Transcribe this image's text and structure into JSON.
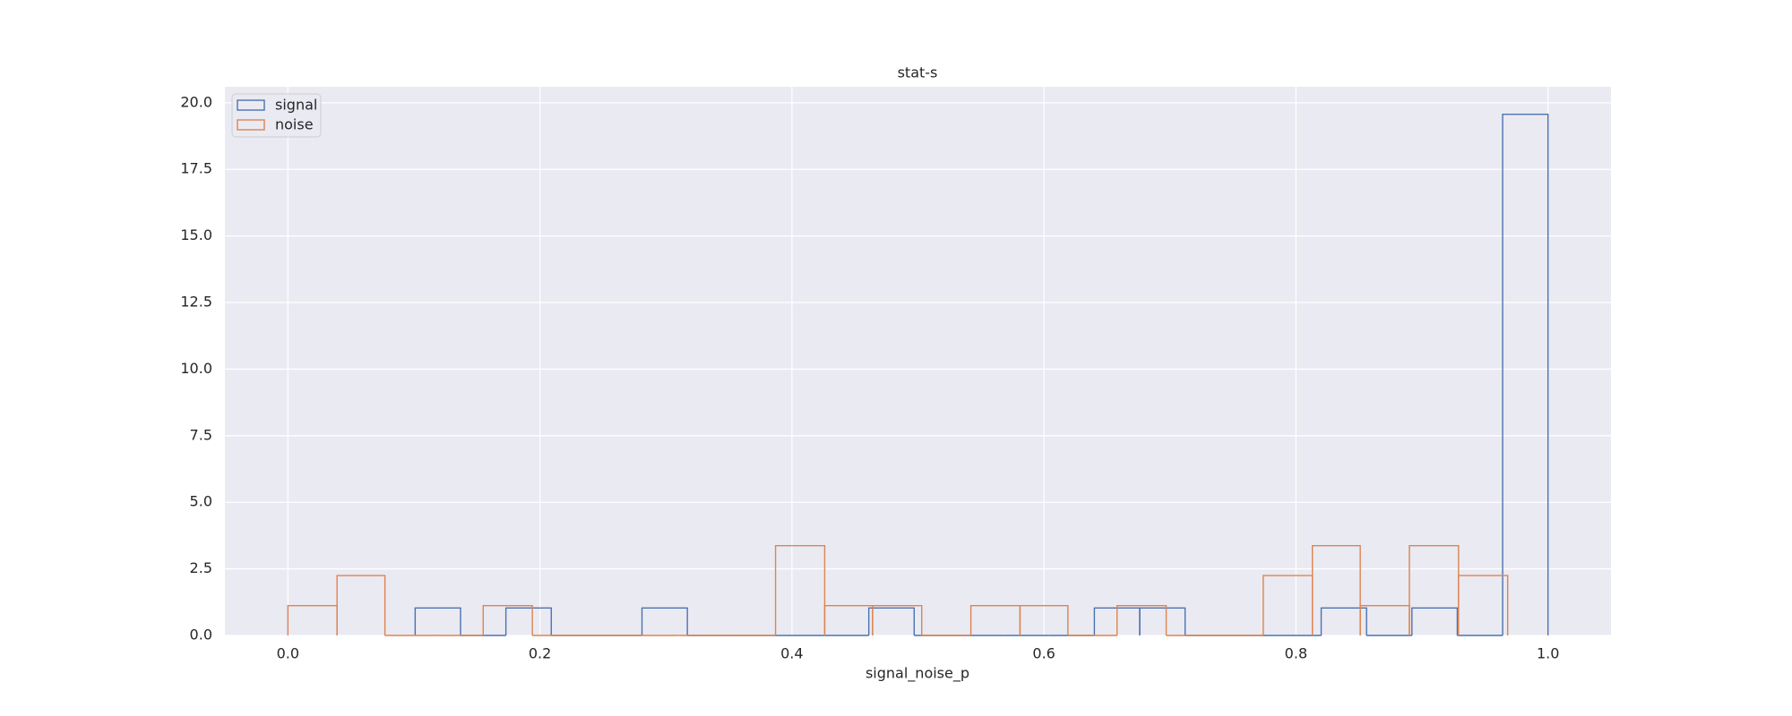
{
  "chart_data": {
    "type": "histogram",
    "title": "stat-s",
    "x_label": "signal_noise_p",
    "series": [
      {
        "name": "signal",
        "color": "#4c72b0",
        "bins": [
          0.101,
          0.137,
          0.173,
          0.209,
          0.245,
          0.281,
          0.317,
          0.353,
          0.389,
          0.425,
          0.461,
          0.497,
          0.533,
          0.568,
          0.604,
          0.64,
          0.676,
          0.712,
          0.748,
          0.784,
          0.82,
          0.856,
          0.892,
          0.928,
          0.964,
          1.0
        ],
        "values": [
          1.03,
          0,
          1.03,
          0,
          0,
          1.03,
          0,
          0,
          0,
          0,
          1.03,
          0,
          0,
          0,
          0,
          1.03,
          1.03,
          0,
          0,
          0,
          1.03,
          0,
          1.03,
          0,
          19.57
        ]
      },
      {
        "name": "noise",
        "color": "#dd8452",
        "bins": [
          0,
          0.039,
          0.077,
          0.116,
          0.155,
          0.194,
          0.232,
          0.271,
          0.31,
          0.348,
          0.387,
          0.426,
          0.464,
          0.503,
          0.542,
          0.581,
          0.619,
          0.658,
          0.697,
          0.735,
          0.774,
          0.813,
          0.851,
          0.89,
          0.929,
          0.968
        ],
        "values": [
          1.12,
          2.25,
          0,
          0,
          1.12,
          0,
          0,
          0,
          0,
          0,
          3.37,
          1.12,
          1.12,
          0,
          1.12,
          1.12,
          0,
          1.12,
          0,
          0,
          2.25,
          3.37,
          1.12,
          3.37,
          2.25
        ]
      }
    ],
    "xlim": [
      -0.05,
      1.05
    ],
    "xticks": [
      {
        "value": 0,
        "label": "0.0"
      },
      0.2,
      0.4,
      0.6,
      0.8,
      {
        "value": 1,
        "label": "1.0"
      }
    ],
    "ylim": [
      0,
      20.6
    ],
    "yticks": [
      {
        "value": 0,
        "label": "0.0"
      },
      2.5,
      {
        "value": 5,
        "label": "5.0"
      },
      7.5,
      {
        "value": 10,
        "label": "10.0"
      },
      12.5,
      {
        "value": 15,
        "label": "15.0"
      },
      17.5,
      {
        "value": 20,
        "label": "20.0"
      }
    ],
    "grid": true,
    "legend": "upper left",
    "background": "#eaeaf2"
  }
}
